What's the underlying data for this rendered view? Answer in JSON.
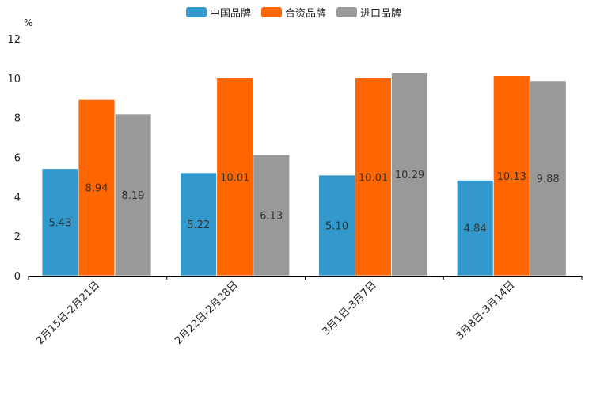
{
  "chart_data": {
    "type": "bar",
    "title": "",
    "xlabel": "",
    "ylabel": "%",
    "ylim": [
      0,
      12
    ],
    "yticks": [
      0,
      2,
      4,
      6,
      8,
      10,
      12
    ],
    "grid": false,
    "legend_position": "top-center",
    "categories": [
      "2月15日-2月21日",
      "2月22日-2月28日",
      "3月1日-3月7日",
      "3月8日-3月14日"
    ],
    "series": [
      {
        "name": "中国品牌",
        "color": "#3399cc",
        "values": [
          5.43,
          5.22,
          5.1,
          4.84
        ]
      },
      {
        "name": "合资品牌",
        "color": "#ff6600",
        "values": [
          8.94,
          10.01,
          10.01,
          10.13
        ]
      },
      {
        "name": "进口品牌",
        "color": "#999999",
        "values": [
          8.19,
          6.13,
          10.29,
          9.88
        ]
      }
    ]
  }
}
